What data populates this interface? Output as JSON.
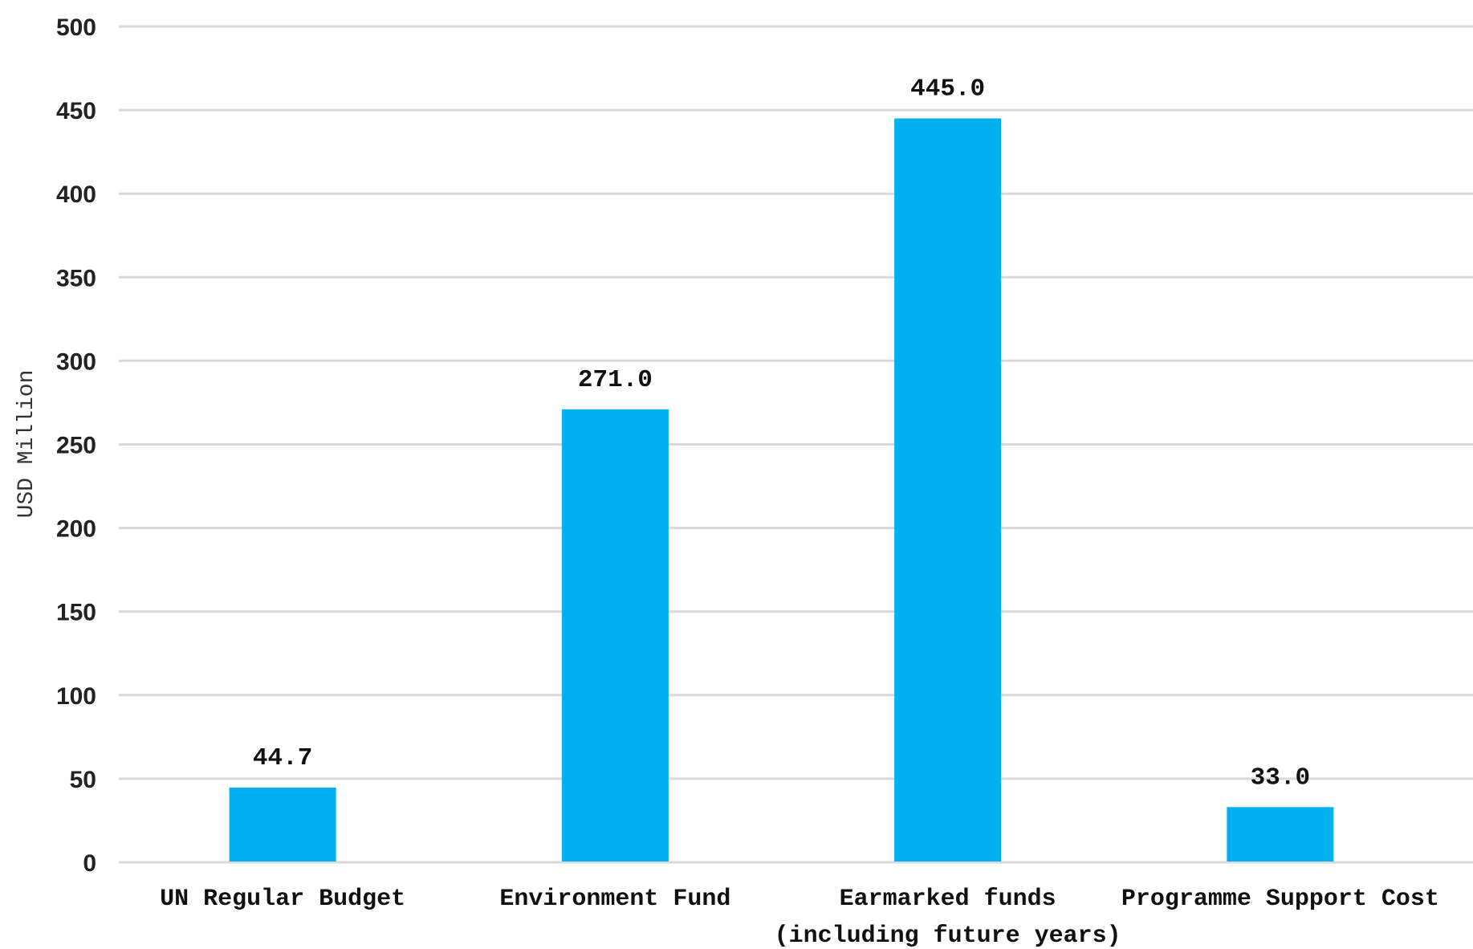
{
  "chart_data": {
    "type": "bar",
    "title": "",
    "xlabel": "",
    "ylabel": "USD Million",
    "ylim": [
      0,
      500
    ],
    "yticks": [
      0,
      50,
      100,
      150,
      200,
      250,
      300,
      350,
      400,
      450,
      500
    ],
    "grid": true,
    "legend": "none",
    "bar_color": "#00b0f0",
    "categories": [
      [
        "UN Regular Budget"
      ],
      [
        "Environment Fund"
      ],
      [
        "Earmarked funds",
        "(including future years)"
      ],
      [
        "Programme Support Cost"
      ]
    ],
    "values": [
      44.7,
      271.0,
      445.0,
      33.0
    ],
    "data_labels": [
      "44.7",
      "271.0",
      "445.0",
      "33.0"
    ]
  }
}
